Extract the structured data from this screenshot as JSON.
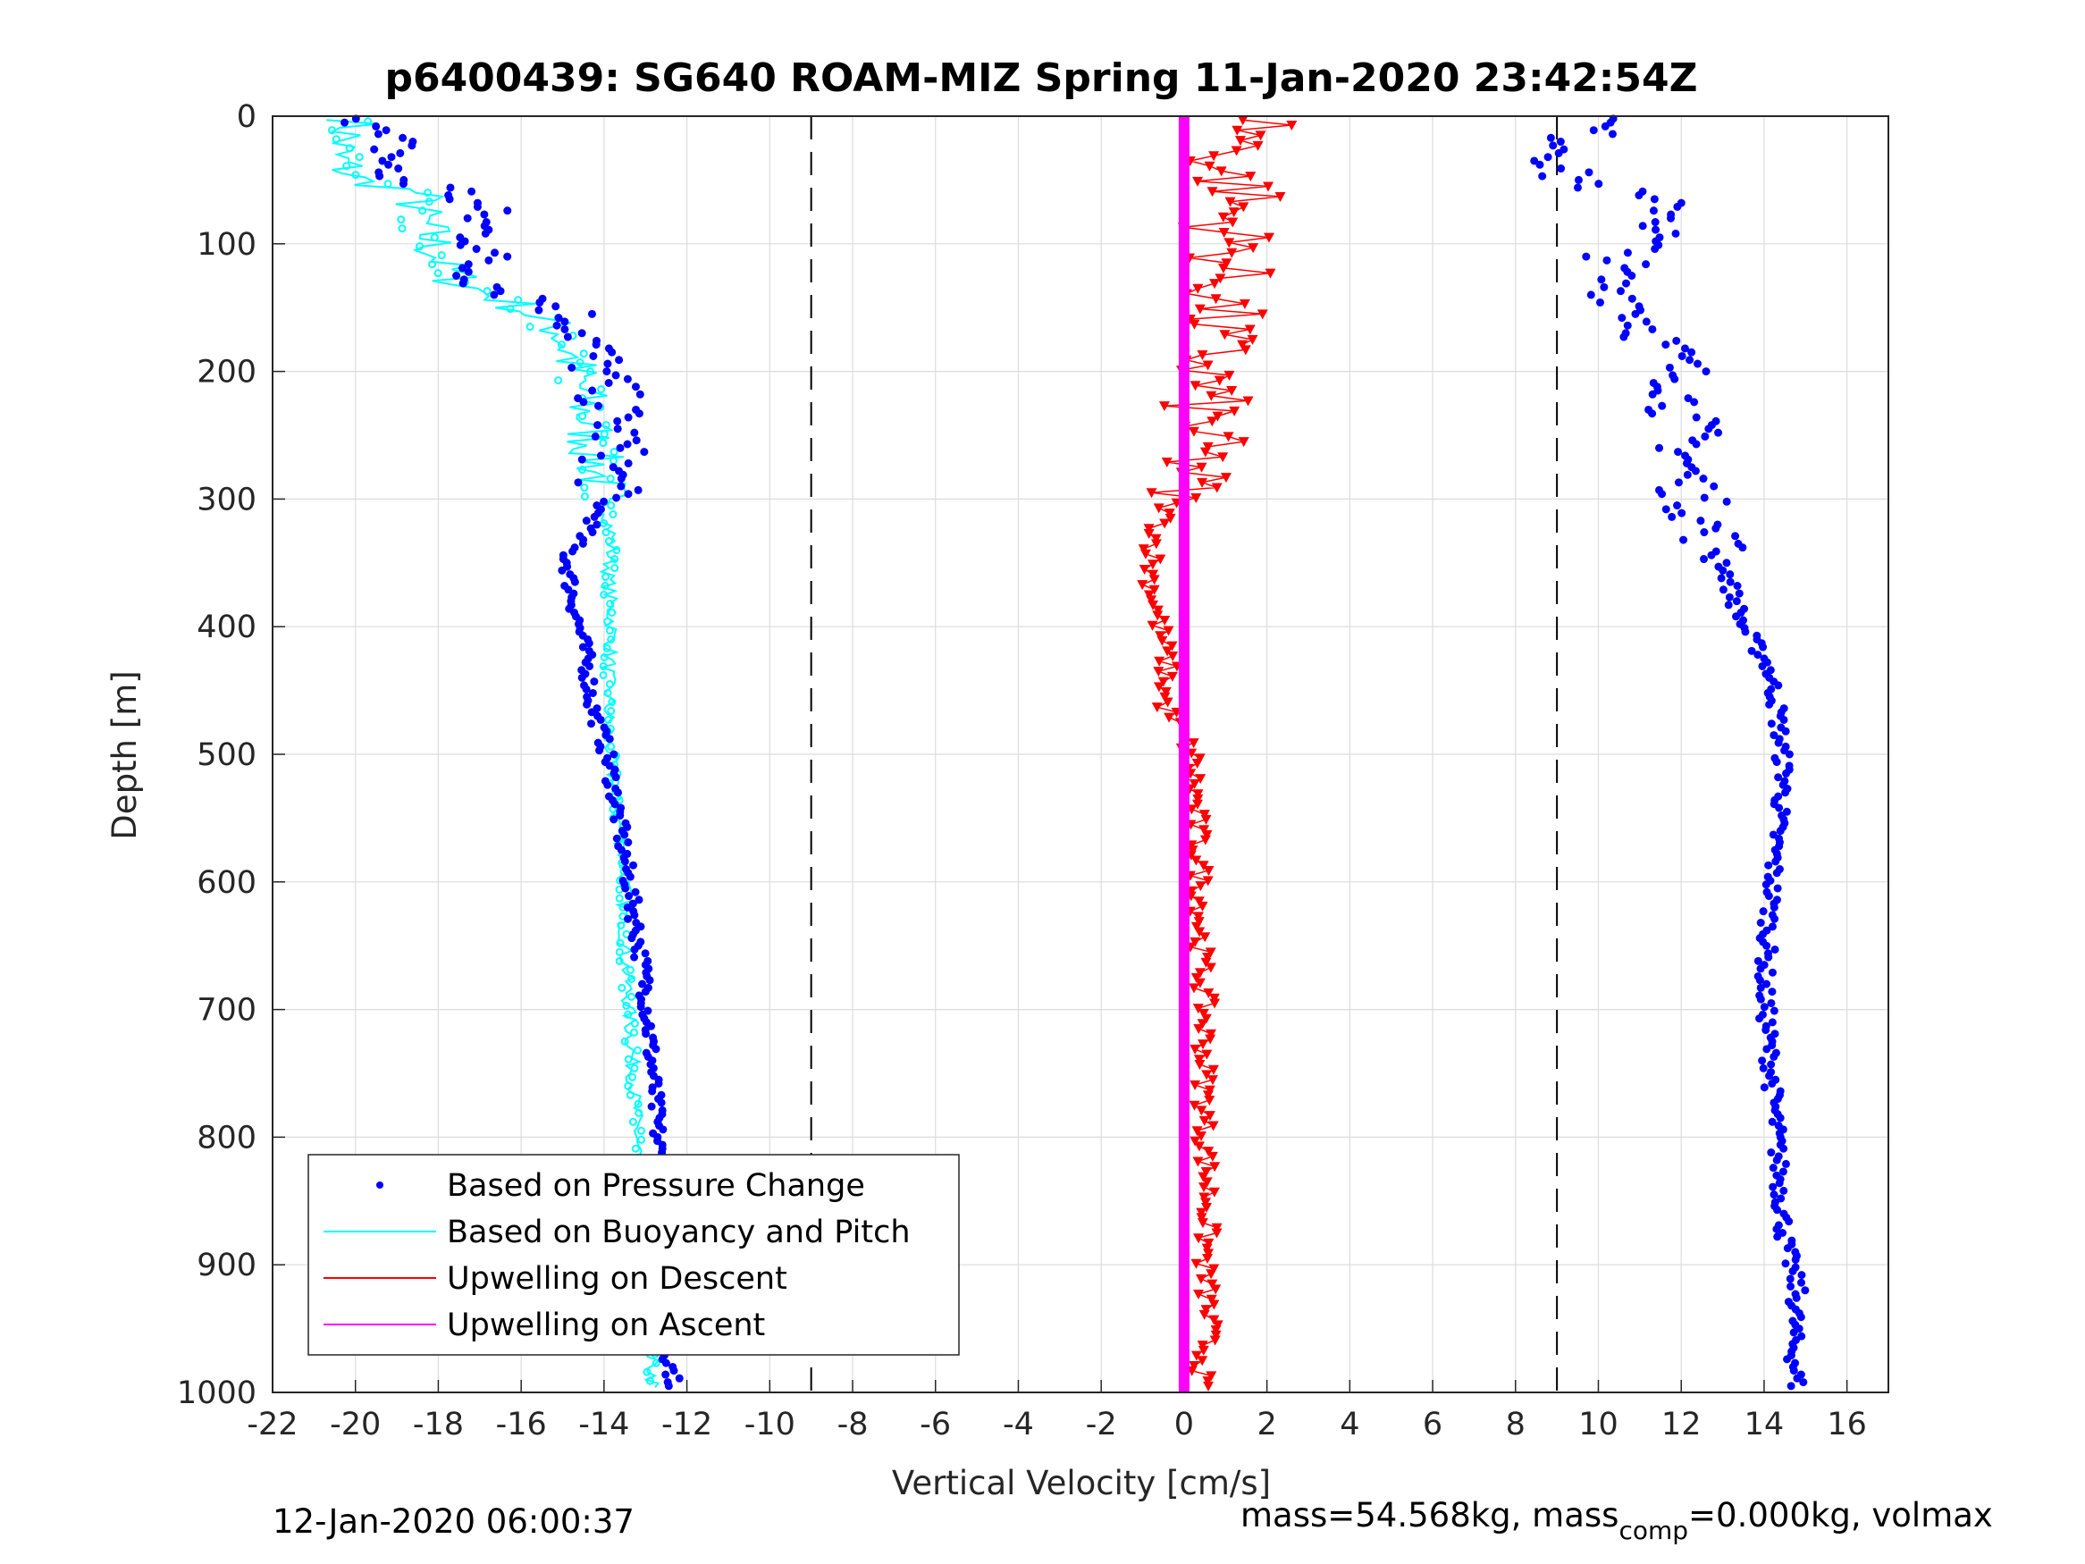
{
  "chart_data": {
    "type": "scatter",
    "title": "p6400439: SG640 ROAM-MIZ Spring 11-Jan-2020 23:42:54Z",
    "xlabel": "Vertical Velocity [cm/s]",
    "ylabel": "Depth [m]",
    "xlim": [
      -22,
      17
    ],
    "ylim": [
      1000,
      0
    ],
    "y_reversed": true,
    "grid": true,
    "xticks": [
      -22,
      -20,
      -18,
      -16,
      -14,
      -12,
      -10,
      -8,
      -6,
      -4,
      -2,
      0,
      2,
      4,
      6,
      8,
      10,
      12,
      14,
      16
    ],
    "xtick_labels": [
      "-22",
      "-20",
      "-18",
      "-16",
      "-14",
      "-12",
      "-10",
      "-8",
      "-6",
      "-4",
      "-2",
      "0",
      "2",
      "4",
      "6",
      "8",
      "10",
      "12",
      "14",
      "16"
    ],
    "yticks": [
      0,
      100,
      200,
      300,
      400,
      500,
      600,
      700,
      800,
      900,
      1000
    ],
    "ytick_labels": [
      "0",
      "100",
      "200",
      "300",
      "400",
      "500",
      "600",
      "700",
      "800",
      "900",
      "1000"
    ],
    "reference_lines_x": [
      -9,
      9
    ],
    "legend_placement": "bottom-left",
    "legend": [
      {
        "label": "Based on Pressure Change",
        "color": "#0000ff",
        "style": "dot"
      },
      {
        "label": "Based on Buoyancy and Pitch",
        "color": "#00ffff",
        "style": "line"
      },
      {
        "label": "Upwelling on Descent",
        "color": "#ff0000",
        "style": "line"
      },
      {
        "label": "Upwelling on Ascent",
        "color": "#ff00ff",
        "style": "line"
      }
    ],
    "series": [
      {
        "name": "Based on Pressure Change (descent)",
        "color": "#0000ff",
        "depth": [
          5,
          12,
          20,
          30,
          45,
          60,
          75,
          90,
          105,
          120,
          135,
          150,
          165,
          180,
          195,
          210,
          230,
          250,
          275,
          300,
          320,
          345,
          370,
          400,
          430,
          460,
          490,
          520,
          560,
          600,
          640,
          680,
          720,
          760,
          800,
          840,
          880,
          920,
          960,
          995
        ],
        "velocity": [
          -19.5,
          -19.8,
          -19.2,
          -19.0,
          -19.5,
          -17.5,
          -17.0,
          -17.0,
          -16.8,
          -17.2,
          -16.5,
          -15.0,
          -14.5,
          -14.3,
          -14.2,
          -14.0,
          -13.8,
          -13.7,
          -13.8,
          -14.0,
          -14.3,
          -14.9,
          -14.8,
          -14.6,
          -14.4,
          -14.3,
          -14.0,
          -13.8,
          -13.6,
          -13.4,
          -13.2,
          -13.0,
          -12.9,
          -12.8,
          -12.7,
          -12.6,
          -12.6,
          -12.5,
          -12.5,
          -12.3
        ]
      },
      {
        "name": "Based on Buoyancy and Pitch (descent)",
        "color": "#00ffff",
        "depth": [
          5,
          15,
          30,
          50,
          60,
          75,
          90,
          110,
          130,
          150,
          170,
          190,
          210,
          240,
          270,
          300,
          330,
          360,
          400,
          440,
          480,
          520,
          560,
          600,
          650,
          700,
          750,
          800,
          850,
          900,
          950,
          995
        ],
        "velocity": [
          -20.0,
          -20.2,
          -20.5,
          -20.0,
          -18.5,
          -18.5,
          -18.3,
          -18.0,
          -17.5,
          -16.0,
          -15.0,
          -14.8,
          -14.6,
          -14.4,
          -14.2,
          -14.0,
          -13.8,
          -13.9,
          -13.8,
          -13.9,
          -13.9,
          -13.8,
          -13.6,
          -13.5,
          -13.5,
          -13.4,
          -13.3,
          -13.2,
          -13.1,
          -13.0,
          -12.9,
          -12.8
        ]
      },
      {
        "name": "Based on Pressure Change (ascent)",
        "color": "#0000ff",
        "depth": [
          995,
          960,
          920,
          880,
          840,
          800,
          760,
          720,
          680,
          640,
          600,
          560,
          520,
          490,
          460,
          430,
          400,
          370,
          345,
          320,
          300,
          275,
          250,
          230,
          210,
          190,
          170,
          150,
          130,
          110,
          90,
          75,
          60,
          45,
          30,
          15,
          5
        ],
        "velocity": [
          14.8,
          14.7,
          14.8,
          14.5,
          14.4,
          14.3,
          14.2,
          14.1,
          14.0,
          14.1,
          14.2,
          14.3,
          14.5,
          14.4,
          14.3,
          14.1,
          13.5,
          13.2,
          13.0,
          12.6,
          12.3,
          12.1,
          12.2,
          12.0,
          12.1,
          11.8,
          11.3,
          11.0,
          10.2,
          10.5,
          11.5,
          12.0,
          10.5,
          9.0,
          9.3,
          9.6,
          10.0
        ]
      },
      {
        "name": "Upwelling on Descent",
        "color": "#ff0000",
        "depth": [
          5,
          20,
          40,
          60,
          80,
          100,
          130,
          160,
          190,
          220,
          250,
          280,
          300,
          330,
          360,
          400,
          430,
          460,
          500,
          550,
          600,
          650,
          700,
          750,
          800,
          850,
          900,
          950,
          990
        ],
        "velocity": [
          2.0,
          1.5,
          0.8,
          1.5,
          1.0,
          1.2,
          1.0,
          0.8,
          0.6,
          0.5,
          0.4,
          0.2,
          -0.3,
          -0.7,
          -0.8,
          -0.6,
          -0.4,
          -0.5,
          0.2,
          0.3,
          0.4,
          0.4,
          0.5,
          0.5,
          0.5,
          0.6,
          0.5,
          0.6,
          0.4
        ]
      },
      {
        "name": "Upwelling on Ascent",
        "color": "#ff00ff",
        "depth": [
          0,
          1000
        ],
        "velocity": [
          0,
          0
        ]
      }
    ]
  },
  "footer": {
    "timestamp": "12-Jan-2020 06:00:37",
    "mass_prefix": "mass=54.568kg, mass",
    "mass_sub": "comp",
    "mass_suffix": "=0.000kg, volmax"
  }
}
